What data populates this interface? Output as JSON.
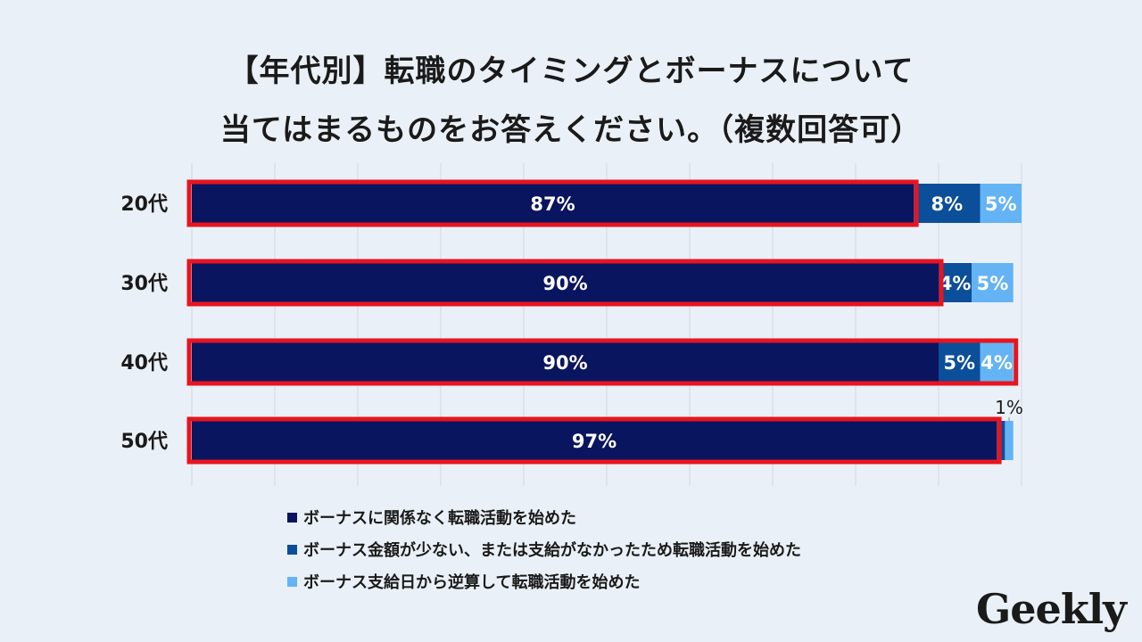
{
  "title": {
    "line1": "【年代別】転職のタイミングとボーナスについて",
    "line2": "当てはまるものをお答えください。（複数回答可）"
  },
  "chart_data": {
    "type": "bar",
    "orientation": "horizontal",
    "stacked": true,
    "categories": [
      "20代",
      "30代",
      "40代",
      "50代"
    ],
    "series": [
      {
        "name": "ボーナスに関係なく転職活動を始めた",
        "color": "#0a1560",
        "values": [
          87,
          90,
          90,
          97
        ],
        "labels": [
          "87%",
          "90%",
          "90%",
          "97%"
        ]
      },
      {
        "name": "ボーナス金額が少ない、または支給がなかったため転職活動を始めた",
        "color": "#0b4e9a",
        "values": [
          8,
          4,
          5,
          1
        ],
        "labels": [
          "8%",
          "4%",
          "5%",
          ""
        ]
      },
      {
        "name": "ボーナス支給日から逆算して転職活動を始めた",
        "color": "#63b3f5",
        "values": [
          5,
          5,
          4,
          1
        ],
        "labels": [
          "5%",
          "5%",
          "4%",
          "1%"
        ]
      }
    ],
    "xlim": [
      0,
      100
    ],
    "grid": true,
    "highlight_series": 0,
    "highlight_color": "#e8141f"
  },
  "logo": "Geekly"
}
